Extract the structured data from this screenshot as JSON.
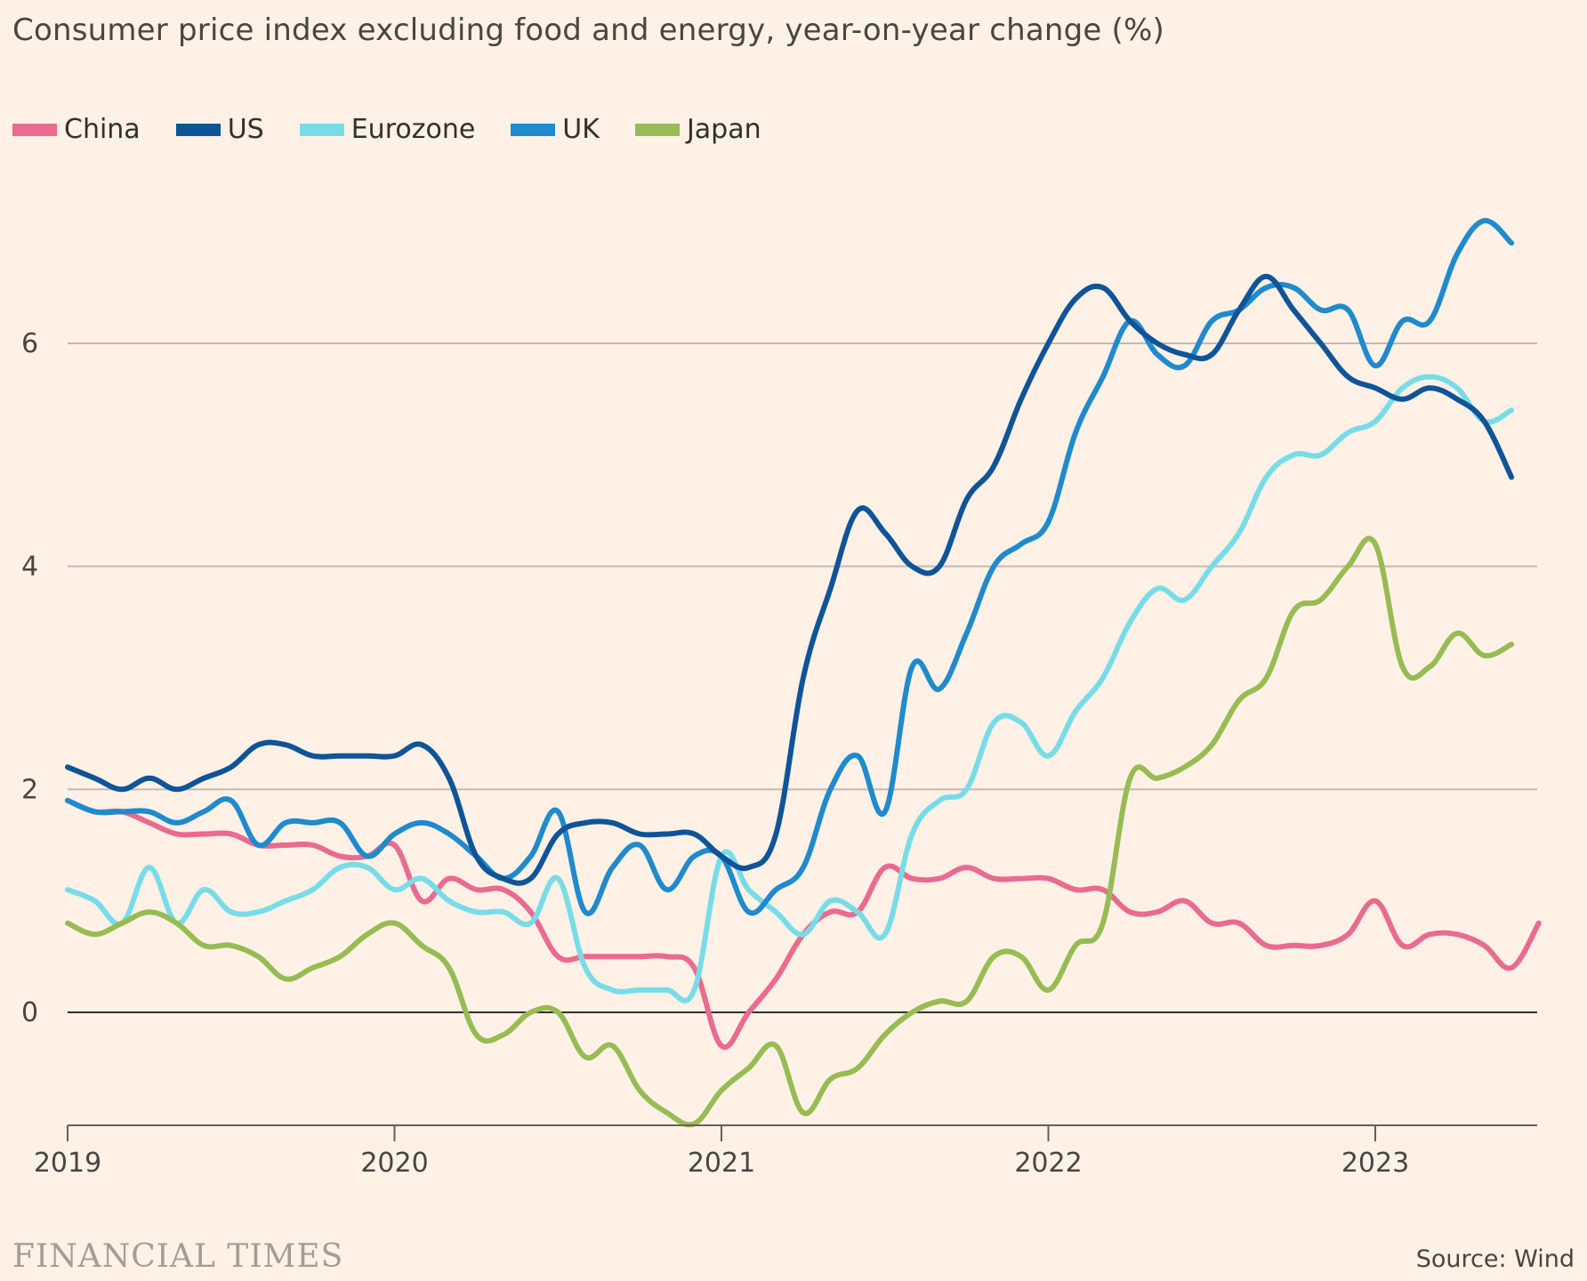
{
  "chart_data": {
    "type": "line",
    "title": "Consumer price index excluding food and energy, year-on-year change (%)",
    "xlabel": "",
    "ylabel": "",
    "ylim": [
      -1,
      7.2
    ],
    "yticks": [
      0,
      2,
      4,
      6
    ],
    "xlim": [
      2019,
      2023.5
    ],
    "xticks": [
      2019,
      2020,
      2021,
      2022,
      2023
    ],
    "x_start": 2019,
    "step_months": 1,
    "series": [
      {
        "name": "China",
        "color": "#ea6a91",
        "values": [
          1.9,
          1.8,
          1.8,
          1.7,
          1.6,
          1.6,
          1.6,
          1.5,
          1.5,
          1.5,
          1.4,
          1.4,
          1.5,
          1.0,
          1.2,
          1.1,
          1.1,
          0.9,
          0.5,
          0.5,
          0.5,
          0.5,
          0.5,
          0.4,
          -0.3,
          0.0,
          0.3,
          0.7,
          0.9,
          0.9,
          1.3,
          1.2,
          1.2,
          1.3,
          1.2,
          1.2,
          1.2,
          1.1,
          1.1,
          0.9,
          0.9,
          1.0,
          0.8,
          0.8,
          0.6,
          0.6,
          0.6,
          0.7,
          1.0,
          0.6,
          0.7,
          0.7,
          0.6,
          0.4,
          0.8
        ]
      },
      {
        "name": "US",
        "color": "#0f5499",
        "values": [
          2.2,
          2.1,
          2.0,
          2.1,
          2.0,
          2.1,
          2.2,
          2.4,
          2.4,
          2.3,
          2.3,
          2.3,
          2.3,
          2.4,
          2.1,
          1.4,
          1.2,
          1.2,
          1.6,
          1.7,
          1.7,
          1.6,
          1.6,
          1.6,
          1.4,
          1.3,
          1.6,
          3.0,
          3.8,
          4.5,
          4.3,
          4.0,
          4.0,
          4.6,
          4.9,
          5.5,
          6.0,
          6.4,
          6.5,
          6.2,
          6.0,
          5.9,
          5.9,
          6.3,
          6.6,
          6.3,
          6.0,
          5.7,
          5.6,
          5.5,
          5.6,
          5.5,
          5.3,
          4.8
        ]
      },
      {
        "name": "Eurozone",
        "color": "#77dce8",
        "values": [
          1.1,
          1.0,
          0.8,
          1.3,
          0.8,
          1.1,
          0.9,
          0.9,
          1.0,
          1.1,
          1.3,
          1.3,
          1.1,
          1.2,
          1.0,
          0.9,
          0.9,
          0.8,
          1.2,
          0.4,
          0.2,
          0.2,
          0.2,
          0.2,
          1.4,
          1.1,
          0.9,
          0.7,
          1.0,
          0.9,
          0.7,
          1.6,
          1.9,
          2.0,
          2.6,
          2.6,
          2.3,
          2.7,
          3.0,
          3.5,
          3.8,
          3.7,
          4.0,
          4.3,
          4.8,
          5.0,
          5.0,
          5.2,
          5.3,
          5.6,
          5.7,
          5.6,
          5.3,
          5.4
        ]
      },
      {
        "name": "UK",
        "color": "#1f8ace",
        "values": [
          1.9,
          1.8,
          1.8,
          1.8,
          1.7,
          1.8,
          1.9,
          1.5,
          1.7,
          1.7,
          1.7,
          1.4,
          1.6,
          1.7,
          1.6,
          1.4,
          1.2,
          1.4,
          1.8,
          0.9,
          1.3,
          1.5,
          1.1,
          1.4,
          1.4,
          0.9,
          1.1,
          1.3,
          2.0,
          2.3,
          1.8,
          3.1,
          2.9,
          3.4,
          4.0,
          4.2,
          4.4,
          5.2,
          5.7,
          6.2,
          5.9,
          5.8,
          6.2,
          6.3,
          6.5,
          6.5,
          6.3,
          6.3,
          5.8,
          6.2,
          6.2,
          6.8,
          7.1,
          6.9
        ]
      },
      {
        "name": "Japan",
        "color": "#96bc53",
        "values": [
          0.8,
          0.7,
          0.8,
          0.9,
          0.8,
          0.6,
          0.6,
          0.5,
          0.3,
          0.4,
          0.5,
          0.7,
          0.8,
          0.6,
          0.4,
          -0.2,
          -0.2,
          0.0,
          0.0,
          -0.4,
          -0.3,
          -0.7,
          -0.9,
          -1.0,
          -0.7,
          -0.5,
          -0.3,
          -0.9,
          -0.6,
          -0.5,
          -0.2,
          0.0,
          0.1,
          0.1,
          0.5,
          0.5,
          0.2,
          0.6,
          0.8,
          2.1,
          2.1,
          2.2,
          2.4,
          2.8,
          3.0,
          3.6,
          3.7,
          4.0,
          4.2,
          3.1,
          3.1,
          3.4,
          3.2,
          3.3
        ]
      }
    ]
  },
  "footer": {
    "brand": "FINANCIAL TIMES",
    "source": "Source: Wind"
  }
}
